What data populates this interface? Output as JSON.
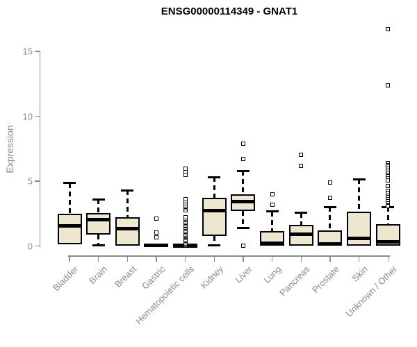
{
  "chart_data": {
    "type": "boxplot",
    "title": "ENSG00000114349 - GNAT1",
    "ylabel": "Expression",
    "xlabel": "",
    "yticks": [
      0,
      5,
      10,
      15
    ],
    "ylim": [
      0,
      16.9
    ],
    "grid": false,
    "legend": null,
    "colors": {
      "box_fill": "#ede8cd",
      "box_stroke": "#000000",
      "axis": "#8a8a8a",
      "tick_label": "#8a8a8a",
      "title": "#000000"
    },
    "categories": [
      "Bladder",
      "Brain",
      "Breast",
      "Gastric",
      "Hematopoietic cells",
      "Kidney",
      "Liver",
      "Lung",
      "Pancreas",
      "Prostate",
      "Skin",
      "Unknown / Other"
    ],
    "boxes": [
      {
        "category": "Bladder",
        "whisker_low": 0.15,
        "q1": 0.15,
        "median": 1.55,
        "q3": 2.5,
        "whisker_high": 4.85,
        "outliers": []
      },
      {
        "category": "Brain",
        "whisker_low": 0.05,
        "q1": 0.9,
        "median": 2.05,
        "q3": 2.55,
        "whisker_high": 3.6,
        "outliers": []
      },
      {
        "category": "Breast",
        "whisker_low": 0.0,
        "q1": 0.0,
        "median": 1.35,
        "q3": 2.2,
        "whisker_high": 4.3,
        "outliers": []
      },
      {
        "category": "Gastric",
        "whisker_low": 0.0,
        "q1": 0.0,
        "median": 0.05,
        "q3": 0.15,
        "whisker_high": 0.15,
        "outliers": [
          2.1,
          1.05,
          0.65
        ]
      },
      {
        "category": "Hematopoietic cells",
        "whisker_low": 0.0,
        "q1": 0.0,
        "median": 0.05,
        "q3": 0.1,
        "whisker_high": 0.1,
        "outliers": [
          0.1,
          0.2,
          0.3,
          0.4,
          0.5,
          0.6,
          0.7,
          0.8,
          0.9,
          1.0,
          1.1,
          1.2,
          1.3,
          1.4,
          1.5,
          1.6,
          1.7,
          1.8,
          1.9,
          2.0,
          2.1,
          2.2,
          2.75,
          2.9,
          3.0,
          3.15,
          3.3,
          3.45,
          3.6,
          5.5,
          5.75,
          5.95
        ]
      },
      {
        "category": "Kidney",
        "whisker_low": 0.05,
        "q1": 0.75,
        "median": 2.75,
        "q3": 3.7,
        "whisker_high": 5.3,
        "outliers": []
      },
      {
        "category": "Liver",
        "whisker_low": 1.4,
        "q1": 2.7,
        "median": 3.4,
        "q3": 4.0,
        "whisker_high": 5.8,
        "outliers": [
          7.9,
          6.7,
          0.05
        ]
      },
      {
        "category": "Lung",
        "whisker_low": 0.0,
        "q1": 0.0,
        "median": 0.2,
        "q3": 1.15,
        "whisker_high": 2.65,
        "outliers": [
          4.0,
          3.2
        ]
      },
      {
        "category": "Pancreas",
        "whisker_low": 0.0,
        "q1": 0.0,
        "median": 0.9,
        "q3": 1.65,
        "whisker_high": 2.55,
        "outliers": [
          7.05,
          6.2
        ]
      },
      {
        "category": "Prostate",
        "whisker_low": 0.0,
        "q1": 0.0,
        "median": 0.15,
        "q3": 1.2,
        "whisker_high": 3.0,
        "outliers": [
          4.9,
          3.7
        ]
      },
      {
        "category": "Skin",
        "whisker_low": 0.0,
        "q1": 0.0,
        "median": 0.6,
        "q3": 2.65,
        "whisker_high": 5.15,
        "outliers": []
      },
      {
        "category": "Unknown / Other",
        "whisker_low": 0.0,
        "q1": 0.0,
        "median": 0.3,
        "q3": 1.7,
        "whisker_high": 3.0,
        "outliers": [
          16.7,
          12.4,
          6.4,
          6.25,
          6.1,
          5.95,
          5.8,
          5.65,
          5.5,
          5.35,
          5.2,
          5.05,
          4.65,
          4.25,
          4.1,
          3.9,
          3.75,
          3.6,
          3.45,
          3.3,
          3.15,
          3.05
        ]
      }
    ]
  }
}
